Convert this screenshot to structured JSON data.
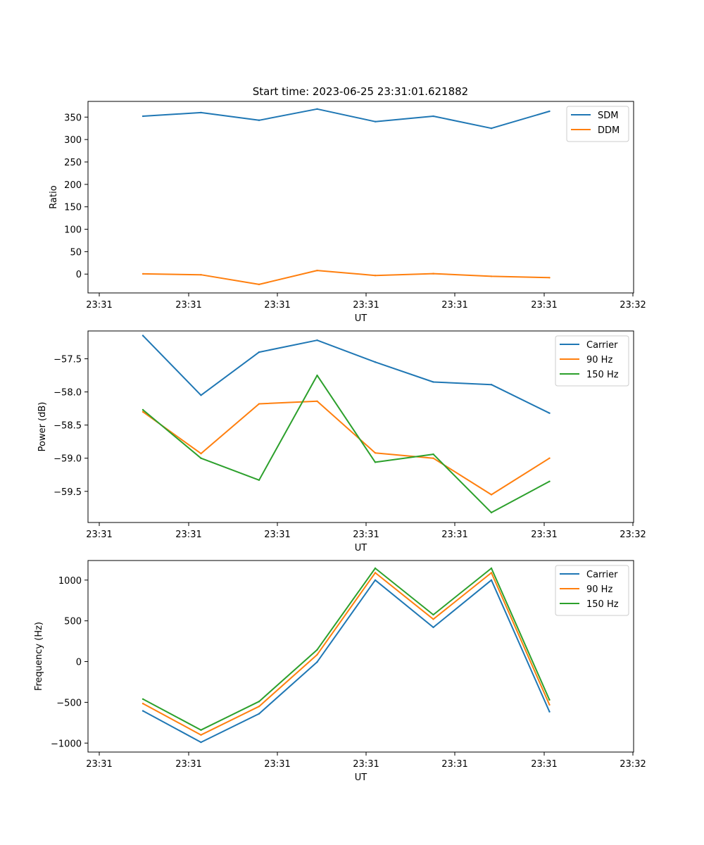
{
  "figure": {
    "title": "Start time: 2023-06-25 23:31:01.621882"
  },
  "chart_data": [
    {
      "type": "line",
      "title": "Start time: 2023-06-25 23:31:01.621882",
      "xlabel": "UT",
      "ylabel": "Ratio",
      "x_tick_labels": [
        "23:31",
        "23:31",
        "23:31",
        "23:31",
        "23:31",
        "23:31",
        "23:32"
      ],
      "y_ticks": [
        0,
        50,
        100,
        150,
        200,
        250,
        300,
        350
      ],
      "ylim": [
        -42,
        385
      ],
      "grid": false,
      "legend_position": "upper right",
      "series": [
        {
          "name": "SDM",
          "color": "#1f77b4",
          "values": [
            352,
            360,
            343,
            368,
            340,
            352,
            325,
            363
          ]
        },
        {
          "name": "DDM",
          "color": "#ff7f0e",
          "values": [
            0.5,
            -1.5,
            -23,
            8,
            -3,
            1,
            -5,
            -8
          ]
        }
      ]
    },
    {
      "type": "line",
      "title": "",
      "xlabel": "UT",
      "ylabel": "Power (dB)",
      "x_tick_labels": [
        "23:31",
        "23:31",
        "23:31",
        "23:31",
        "23:31",
        "23:31",
        "23:32"
      ],
      "y_ticks": [
        -57.5,
        -58.0,
        -58.5,
        -59.0,
        -59.5
      ],
      "y_tick_labels": [
        "−57.5",
        "−58.0",
        "−58.5",
        "−59.0",
        "−59.5"
      ],
      "ylim": [
        -59.97,
        -57.08
      ],
      "grid": false,
      "legend_position": "upper right",
      "series": [
        {
          "name": "Carrier",
          "color": "#1f77b4",
          "values": [
            -57.15,
            -58.05,
            -57.4,
            -57.22,
            -57.55,
            -57.85,
            -57.89,
            -58.32
          ]
        },
        {
          "name": "90 Hz",
          "color": "#ff7f0e",
          "values": [
            -58.3,
            -58.93,
            -58.18,
            -58.14,
            -58.92,
            -59.0,
            -59.55,
            -59.0
          ]
        },
        {
          "name": "150 Hz",
          "color": "#2ca02c",
          "values": [
            -58.27,
            -59.0,
            -59.33,
            -57.75,
            -59.06,
            -58.94,
            -59.82,
            -59.35
          ]
        }
      ]
    },
    {
      "type": "line",
      "title": "",
      "xlabel": "UT",
      "ylabel": "Frequency (Hz)",
      "x_tick_labels": [
        "23:31",
        "23:31",
        "23:31",
        "23:31",
        "23:31",
        "23:31",
        "23:32"
      ],
      "y_ticks": [
        -1000,
        -500,
        0,
        500,
        1000
      ],
      "y_tick_labels": [
        "−1000",
        "−500",
        "0",
        "500",
        "1000"
      ],
      "ylim": [
        -1110,
        1240
      ],
      "grid": false,
      "legend_position": "upper right",
      "series": [
        {
          "name": "Carrier",
          "color": "#1f77b4",
          "values": [
            -605,
            -990,
            -640,
            -5,
            1000,
            420,
            1000,
            -615
          ]
        },
        {
          "name": "90 Hz",
          "color": "#ff7f0e",
          "values": [
            -515,
            -900,
            -550,
            85,
            1090,
            520,
            1090,
            -530
          ]
        },
        {
          "name": "150 Hz",
          "color": "#2ca02c",
          "values": [
            -460,
            -840,
            -490,
            145,
            1145,
            575,
            1145,
            -470
          ]
        }
      ]
    }
  ]
}
